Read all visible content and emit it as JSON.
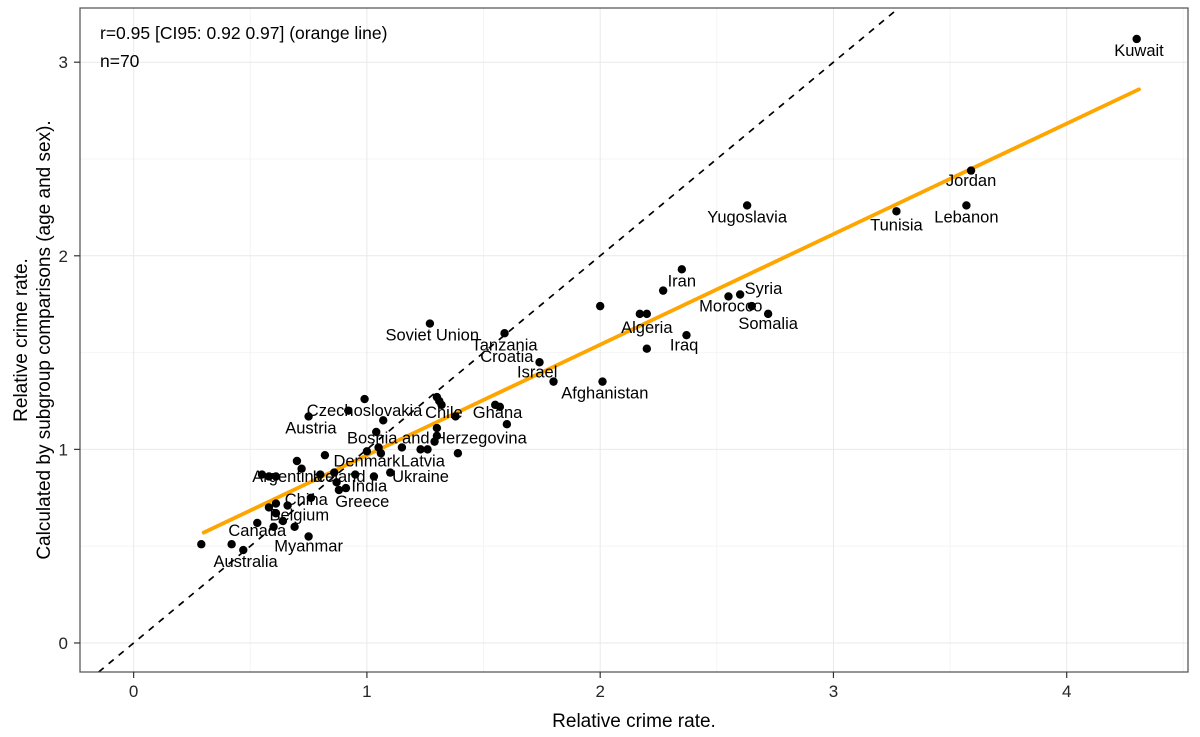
{
  "chart_data": {
    "type": "scatter",
    "title": "",
    "xlabel": "Relative crime rate.",
    "ylabel_lines": [
      "Relative crime rate.",
      "Calculated by subgroup comparisons (age and sex)."
    ],
    "annotation": [
      "r=0.95 [CI95: 0.92 0.97] (orange line)",
      "n=70"
    ],
    "n": 70,
    "xlim": [
      -0.23,
      4.52
    ],
    "ylim": [
      -0.15,
      3.28
    ],
    "x_ticks": [
      0,
      1,
      2,
      3,
      4
    ],
    "y_ticks": [
      0,
      1,
      2,
      3
    ],
    "x_minor": [
      0.5,
      1.5,
      2.5,
      3.5,
      4.5
    ],
    "y_minor": [
      0.5,
      1.5,
      2.5
    ],
    "grid": true,
    "point_color": "#000000",
    "regression_color": "#FFA500",
    "identity_line": {
      "style": "dashed",
      "color": "#000000",
      "x1": -0.15,
      "y1": -0.15,
      "x2": 3.28,
      "y2": 3.28
    },
    "regression_line": {
      "style": "solid",
      "color": "#FFA500",
      "x1": 0.3,
      "y1": 0.57,
      "x2": 4.31,
      "y2": 2.86,
      "slope": 0.571,
      "intercept": 0.403
    },
    "points": [
      [
        4.3,
        3.12
      ],
      [
        3.59,
        2.44
      ],
      [
        3.57,
        2.26
      ],
      [
        3.27,
        2.23
      ],
      [
        2.63,
        2.26
      ],
      [
        2.35,
        1.93
      ],
      [
        2.6,
        1.8
      ],
      [
        2.65,
        1.74
      ],
      [
        2.72,
        1.7
      ],
      [
        2.2,
        1.7
      ],
      [
        2.37,
        1.59
      ],
      [
        1.27,
        1.65
      ],
      [
        1.59,
        1.6
      ],
      [
        1.74,
        1.45
      ],
      [
        1.8,
        1.35
      ],
      [
        2.01,
        1.35
      ],
      [
        0.99,
        1.26
      ],
      [
        1.38,
        1.17
      ],
      [
        1.6,
        1.13
      ],
      [
        0.75,
        1.17
      ],
      [
        1.3,
        1.07
      ],
      [
        1.0,
        0.99
      ],
      [
        1.23,
        1.0
      ],
      [
        0.58,
        0.86
      ],
      [
        0.86,
        0.88
      ],
      [
        1.1,
        0.88
      ],
      [
        0.91,
        0.8
      ],
      [
        0.76,
        0.75
      ],
      [
        0.88,
        0.79
      ],
      [
        0.69,
        0.6
      ],
      [
        0.6,
        0.6
      ],
      [
        0.75,
        0.55
      ],
      [
        0.47,
        0.48
      ],
      [
        2.27,
        1.82
      ],
      [
        2.0,
        1.74
      ],
      [
        2.17,
        1.7
      ],
      [
        2.55,
        1.79
      ],
      [
        2.2,
        1.52
      ],
      [
        1.3,
        1.27
      ],
      [
        1.31,
        1.25
      ],
      [
        1.32,
        1.23
      ],
      [
        1.55,
        1.23
      ],
      [
        1.57,
        1.22
      ],
      [
        0.92,
        1.2
      ],
      [
        1.07,
        1.15
      ],
      [
        1.3,
        1.11
      ],
      [
        1.29,
        1.04
      ],
      [
        1.04,
        1.09
      ],
      [
        1.15,
        1.01
      ],
      [
        1.26,
        1.0
      ],
      [
        1.39,
        0.98
      ],
      [
        1.05,
        1.01
      ],
      [
        1.06,
        0.98
      ],
      [
        0.82,
        0.97
      ],
      [
        0.7,
        0.94
      ],
      [
        0.72,
        0.9
      ],
      [
        0.95,
        0.87
      ],
      [
        1.03,
        0.86
      ],
      [
        0.87,
        0.83
      ],
      [
        0.8,
        0.87
      ],
      [
        0.55,
        0.87
      ],
      [
        0.61,
        0.86
      ],
      [
        0.58,
        0.7
      ],
      [
        0.61,
        0.72
      ],
      [
        0.66,
        0.71
      ],
      [
        0.61,
        0.67
      ],
      [
        0.53,
        0.62
      ],
      [
        0.64,
        0.63
      ],
      [
        0.29,
        0.51
      ],
      [
        0.42,
        0.51
      ]
    ],
    "labels": [
      {
        "text": "Kuwait",
        "x": 4.31,
        "y": 3.06
      },
      {
        "text": "Jordan",
        "x": 3.59,
        "y": 2.39
      },
      {
        "text": "Lebanon",
        "x": 3.57,
        "y": 2.2
      },
      {
        "text": "Tunisia",
        "x": 3.27,
        "y": 2.16
      },
      {
        "text": "Yugoslavia",
        "x": 2.63,
        "y": 2.2
      },
      {
        "text": "Iran",
        "x": 2.35,
        "y": 1.87
      },
      {
        "text": "Syria",
        "x": 2.7,
        "y": 1.83
      },
      {
        "text": "Morocco",
        "x": 2.56,
        "y": 1.74
      },
      {
        "text": "Somalia",
        "x": 2.72,
        "y": 1.65
      },
      {
        "text": "Algeria",
        "x": 2.2,
        "y": 1.63
      },
      {
        "text": "Iraq",
        "x": 2.36,
        "y": 1.54
      },
      {
        "text": "Soviet Union",
        "x": 1.28,
        "y": 1.59
      },
      {
        "text": "Tanzania",
        "x": 1.59,
        "y": 1.54
      },
      {
        "text": "Croatia",
        "x": 1.6,
        "y": 1.48
      },
      {
        "text": "Israel",
        "x": 1.73,
        "y": 1.4
      },
      {
        "text": "Afghanistan",
        "x": 2.02,
        "y": 1.29
      },
      {
        "text": "Czechoslovakia",
        "x": 0.99,
        "y": 1.2
      },
      {
        "text": "Chile",
        "x": 1.33,
        "y": 1.19
      },
      {
        "text": "Ghana",
        "x": 1.56,
        "y": 1.19
      },
      {
        "text": "Austria",
        "x": 0.76,
        "y": 1.11
      },
      {
        "text": "Bosnia and Herzegovina",
        "x": 1.3,
        "y": 1.06
      },
      {
        "text": "Denmark",
        "x": 1.0,
        "y": 0.94
      },
      {
        "text": "Latvia",
        "x": 1.24,
        "y": 0.94
      },
      {
        "text": "Argentina",
        "x": 0.66,
        "y": 0.86
      },
      {
        "text": "Iceland",
        "x": 0.88,
        "y": 0.86
      },
      {
        "text": "Ukraine",
        "x": 1.23,
        "y": 0.86
      },
      {
        "text": "India",
        "x": 1.01,
        "y": 0.81
      },
      {
        "text": "China",
        "x": 0.74,
        "y": 0.74
      },
      {
        "text": "Greece",
        "x": 0.98,
        "y": 0.73
      },
      {
        "text": "Belgium",
        "x": 0.71,
        "y": 0.66
      },
      {
        "text": "Canada",
        "x": 0.53,
        "y": 0.58
      },
      {
        "text": "Myanmar",
        "x": 0.75,
        "y": 0.5
      },
      {
        "text": "Australia",
        "x": 0.48,
        "y": 0.42
      }
    ]
  }
}
